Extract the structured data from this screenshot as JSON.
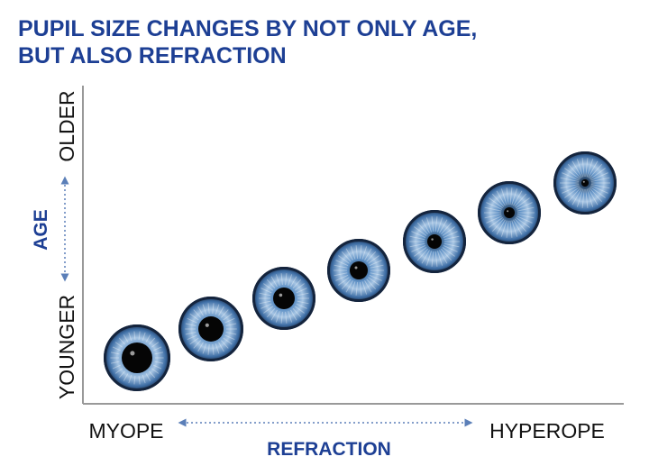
{
  "header": {
    "title_lines": [
      "PUPIL SIZE CHANGES BY NOT ONLY AGE,",
      "BUT ALSO REFRACTION"
    ]
  },
  "y_axis": {
    "label": "AGE",
    "top": "OLDER",
    "bottom": "YOUNGER"
  },
  "x_axis": {
    "label": "REFRACTION",
    "left": "MYOPE",
    "right": "HYPEROPE"
  }
}
